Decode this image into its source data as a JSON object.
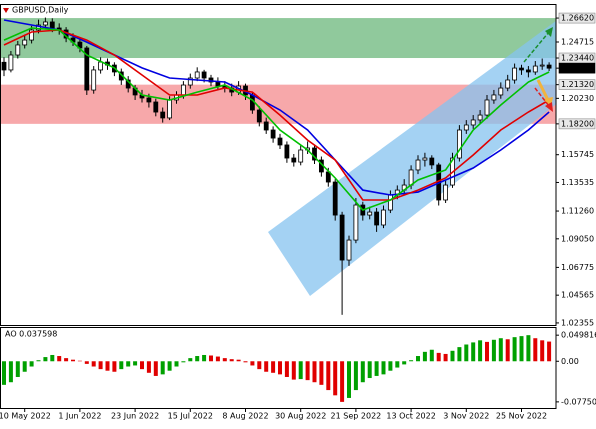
{
  "chart_data": {
    "type": "candlestick",
    "title": "GBPUSD,Daily",
    "ylim": [
      1.0219,
      1.2766
    ],
    "yticks": [
      {
        "value": 1.2662,
        "label": "1.26620"
      },
      {
        "value": 1.24715,
        "label": "1.24715"
      },
      {
        "value": 1.2344,
        "label": "1.23440"
      },
      {
        "value": 1.22633,
        "label": "1.22633"
      },
      {
        "value": 1.2132,
        "label": "1.21320"
      },
      {
        "value": 1.2023,
        "label": "1.20230"
      },
      {
        "value": 1.182,
        "label": "1.18200"
      },
      {
        "value": 1.15745,
        "label": "1.15745"
      },
      {
        "value": 1.13535,
        "label": "1.13535"
      },
      {
        "value": 1.1126,
        "label": "1.11260"
      },
      {
        "value": 1.0905,
        "label": "1.09050"
      },
      {
        "value": 1.06775,
        "label": "1.06775"
      },
      {
        "value": 1.04565,
        "label": "1.04565"
      },
      {
        "value": 1.02355,
        "label": "1.02355"
      }
    ],
    "zones": [
      {
        "from": 1.2344,
        "to": 1.2662,
        "color": "#90c99c"
      },
      {
        "from": 1.182,
        "to": 1.2132,
        "color": "#f7a8aa"
      }
    ],
    "categories": [
      null,
      null,
      null,
      "10 May 2022",
      null,
      null,
      null,
      null,
      null,
      null,
      null,
      "1 Jun 2022",
      null,
      null,
      null,
      null,
      null,
      null,
      null,
      "23 Jun 2022",
      null,
      null,
      null,
      null,
      null,
      null,
      null,
      "15 Jul 2022",
      null,
      null,
      null,
      null,
      null,
      null,
      null,
      "8 Aug 2022",
      null,
      null,
      null,
      null,
      null,
      null,
      null,
      "30 Aug 2022",
      null,
      null,
      null,
      null,
      null,
      null,
      null,
      "21 Sep 2022",
      null,
      null,
      null,
      null,
      null,
      null,
      null,
      "13 Oct 2022",
      null,
      null,
      null,
      null,
      null,
      null,
      null,
      "3 Nov 2022",
      null,
      null,
      null,
      null,
      null,
      null,
      null,
      "25 Nov 2022",
      null,
      null,
      null,
      null
    ],
    "candles": [
      [
        1.231,
        1.235,
        1.22,
        1.2249
      ],
      [
        1.2249,
        1.24,
        1.223,
        1.2368
      ],
      [
        1.2368,
        1.248,
        1.234,
        1.2448
      ],
      [
        1.2448,
        1.253,
        1.242,
        1.2487
      ],
      [
        1.2487,
        1.26,
        1.246,
        1.2567
      ],
      [
        1.2567,
        1.265,
        1.254,
        1.2607
      ],
      [
        1.2607,
        1.2666,
        1.258,
        1.2631
      ],
      [
        1.2631,
        1.266,
        1.255,
        1.2583
      ],
      [
        1.2583,
        1.262,
        1.253,
        1.2567
      ],
      [
        1.2567,
        1.259,
        1.247,
        1.2503
      ],
      [
        1.2503,
        1.254,
        1.244,
        1.2471
      ],
      [
        1.2471,
        1.25,
        1.239,
        1.2424
      ],
      [
        1.2424,
        1.244,
        1.205,
        1.2089
      ],
      [
        1.2089,
        1.228,
        1.206,
        1.2249
      ],
      [
        1.2249,
        1.235,
        1.222,
        1.2312
      ],
      [
        1.2312,
        1.234,
        1.225,
        1.2288
      ],
      [
        1.2288,
        1.231,
        1.22,
        1.2233
      ],
      [
        1.2233,
        1.226,
        1.213,
        1.2169
      ],
      [
        1.2169,
        1.22,
        1.207,
        1.2105
      ],
      [
        1.2105,
        1.213,
        1.201,
        1.205
      ],
      [
        1.205,
        1.209,
        1.199,
        1.2026
      ],
      [
        1.2026,
        1.206,
        1.195,
        1.1994
      ],
      [
        1.1994,
        1.202,
        1.188,
        1.1914
      ],
      [
        1.1914,
        1.195,
        1.183,
        1.1867
      ],
      [
        1.1867,
        1.204,
        1.185,
        1.201
      ],
      [
        1.201,
        1.208,
        1.198,
        1.205
      ],
      [
        1.205,
        1.216,
        1.202,
        1.2129
      ],
      [
        1.2129,
        1.222,
        1.21,
        1.2185
      ],
      [
        1.2185,
        1.227,
        1.216,
        1.2233
      ],
      [
        1.2233,
        1.225,
        1.215,
        1.2185
      ],
      [
        1.2185,
        1.221,
        1.212,
        1.2153
      ],
      [
        1.2153,
        1.219,
        1.209,
        1.2121
      ],
      [
        1.2121,
        1.216,
        1.207,
        1.2105
      ],
      [
        1.2105,
        1.214,
        1.204,
        1.2073
      ],
      [
        1.2073,
        1.216,
        1.205,
        1.2121
      ],
      [
        1.2121,
        1.214,
        1.201,
        1.205
      ],
      [
        1.205,
        1.207,
        1.19,
        1.193
      ],
      [
        1.193,
        1.196,
        1.18,
        1.1835
      ],
      [
        1.1835,
        1.187,
        1.174,
        1.1771
      ],
      [
        1.1771,
        1.18,
        1.167,
        1.1707
      ],
      [
        1.1707,
        1.174,
        1.162,
        1.1652
      ],
      [
        1.1652,
        1.168,
        1.151,
        1.1548
      ],
      [
        1.1548,
        1.158,
        1.148,
        1.1516
      ],
      [
        1.1516,
        1.165,
        1.149,
        1.1612
      ],
      [
        1.1612,
        1.168,
        1.158,
        1.1628
      ],
      [
        1.1628,
        1.165,
        1.15,
        1.1532
      ],
      [
        1.1532,
        1.156,
        1.14,
        1.1437
      ],
      [
        1.1437,
        1.147,
        1.132,
        1.1357
      ],
      [
        1.1357,
        1.138,
        1.105,
        1.1094
      ],
      [
        1.1094,
        1.112,
        1.03,
        1.0736
      ],
      [
        1.0736,
        1.093,
        1.069,
        1.0895
      ],
      [
        1.0895,
        1.123,
        1.087,
        1.1174
      ],
      [
        1.1174,
        1.12,
        1.105,
        1.1094
      ],
      [
        1.1094,
        1.116,
        1.106,
        1.1118
      ],
      [
        1.1118,
        1.115,
        1.096,
        1.1015
      ],
      [
        1.1015,
        1.117,
        1.099,
        1.1134
      ],
      [
        1.1134,
        1.129,
        1.111,
        1.1254
      ],
      [
        1.1254,
        1.133,
        1.122,
        1.1293
      ],
      [
        1.1293,
        1.138,
        1.126,
        1.1333
      ],
      [
        1.1333,
        1.149,
        1.13,
        1.1453
      ],
      [
        1.1453,
        1.157,
        1.142,
        1.1532
      ],
      [
        1.1532,
        1.159,
        1.148,
        1.1548
      ],
      [
        1.1548,
        1.157,
        1.146,
        1.1493
      ],
      [
        1.1493,
        1.151,
        1.117,
        1.1214
      ],
      [
        1.1214,
        1.137,
        1.119,
        1.1333
      ],
      [
        1.1333,
        1.159,
        1.131,
        1.1548
      ],
      [
        1.1548,
        1.181,
        1.152,
        1.1771
      ],
      [
        1.1771,
        1.185,
        1.174,
        1.1811
      ],
      [
        1.1811,
        1.189,
        1.178,
        1.1851
      ],
      [
        1.1851,
        1.193,
        1.182,
        1.189
      ],
      [
        1.189,
        1.205,
        1.186,
        1.201
      ],
      [
        1.201,
        1.209,
        1.198,
        1.205
      ],
      [
        1.205,
        1.215,
        1.202,
        1.2105
      ],
      [
        1.2105,
        1.221,
        1.208,
        1.2169
      ],
      [
        1.2169,
        1.23,
        1.214,
        1.2264
      ],
      [
        1.2264,
        1.229,
        1.221,
        1.2249
      ],
      [
        1.2249,
        1.228,
        1.219,
        1.2233
      ],
      [
        1.2233,
        1.232,
        1.221,
        1.228
      ],
      [
        1.228,
        1.234,
        1.225,
        1.2288
      ],
      [
        1.2288,
        1.231,
        1.224,
        1.22633
      ]
    ],
    "series": [
      {
        "color": "#0000e0",
        "x": [
          0,
          4,
          8,
          12,
          16,
          20,
          24,
          28,
          32,
          36,
          40,
          44,
          48,
          52,
          56,
          60,
          64,
          68,
          72,
          76,
          79
        ],
        "values": [
          1.2647,
          1.2607,
          1.2567,
          1.2471,
          1.2368,
          1.2265,
          1.2185,
          1.2169,
          1.2153,
          1.205,
          1.193,
          1.1771,
          1.1532,
          1.1293,
          1.1254,
          1.1277,
          1.1373,
          1.1469,
          1.1612,
          1.1771,
          1.1914
        ]
      },
      {
        "color": "#e00000",
        "x": [
          0,
          4,
          8,
          12,
          16,
          20,
          24,
          28,
          32,
          36,
          40,
          44,
          48,
          52,
          56,
          60,
          64,
          68,
          72,
          76,
          79
        ],
        "values": [
          1.2448,
          1.2551,
          1.2567,
          1.2487,
          1.2368,
          1.2209,
          1.205,
          1.205,
          1.2105,
          1.2073,
          1.189,
          1.1691,
          1.1532,
          1.1214,
          1.1214,
          1.1293,
          1.1389,
          1.1572,
          1.1771,
          1.1914,
          1.201
        ]
      },
      {
        "color": "#00c000",
        "x": [
          0,
          4,
          8,
          12,
          16,
          20,
          24,
          28,
          32,
          36,
          40,
          44,
          48,
          52,
          56,
          60,
          64,
          68,
          72,
          76,
          79
        ],
        "values": [
          1.2487,
          1.2583,
          1.2567,
          1.2368,
          1.2265,
          1.205,
          1.201,
          1.2073,
          1.2129,
          1.201,
          1.1771,
          1.1612,
          1.1389,
          1.1134,
          1.1214,
          1.1373,
          1.1453,
          1.1771,
          1.197,
          1.2153,
          1.2233
        ]
      }
    ],
    "ao": {
      "label": "AO 0.037598",
      "ylim": [
        -0.0892,
        0.0635
      ],
      "yticks": [
        {
          "value": 0.049816,
          "label": "0.049816"
        },
        {
          "value": 0,
          "label": "0.00"
        },
        {
          "value": -0.077501,
          "label": "-0.077501"
        }
      ],
      "up_color": "#00a000",
      "down_color": "#e00000",
      "values": [
        -0.045,
        -0.04,
        -0.03,
        -0.02,
        -0.01,
        0.002,
        0.008,
        0.012,
        0.01,
        0.006,
        0.003,
        0.001,
        -0.005,
        -0.01,
        -0.015,
        -0.018,
        -0.02,
        -0.015,
        -0.01,
        -0.008,
        -0.015,
        -0.022,
        -0.028,
        -0.025,
        -0.018,
        -0.01,
        -0.002,
        0.006,
        0.01,
        0.012,
        0.011,
        0.009,
        0.006,
        0.004,
        0.003,
        -0.002,
        -0.008,
        -0.015,
        -0.02,
        -0.022,
        -0.025,
        -0.03,
        -0.035,
        -0.034,
        -0.036,
        -0.04,
        -0.045,
        -0.055,
        -0.065,
        -0.0775,
        -0.07,
        -0.055,
        -0.04,
        -0.032,
        -0.028,
        -0.025,
        -0.018,
        -0.012,
        -0.006,
        0.002,
        0.01,
        0.018,
        0.022,
        0.016,
        0.014,
        0.02,
        0.027,
        0.032,
        0.036,
        0.04,
        0.037,
        0.041,
        0.044,
        0.042,
        0.046,
        0.048,
        0.0498,
        0.044,
        0.04,
        0.037598
      ]
    }
  }
}
